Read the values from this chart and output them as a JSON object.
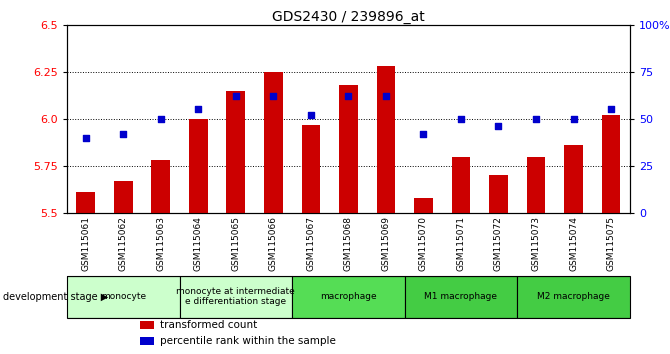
{
  "title": "GDS2430 / 239896_at",
  "samples": [
    "GSM115061",
    "GSM115062",
    "GSM115063",
    "GSM115064",
    "GSM115065",
    "GSM115066",
    "GSM115067",
    "GSM115068",
    "GSM115069",
    "GSM115070",
    "GSM115071",
    "GSM115072",
    "GSM115073",
    "GSM115074",
    "GSM115075"
  ],
  "bar_values": [
    5.61,
    5.67,
    5.78,
    6.0,
    6.15,
    6.25,
    5.97,
    6.18,
    6.28,
    5.58,
    5.8,
    5.7,
    5.8,
    5.86,
    6.02
  ],
  "dot_values": [
    40,
    42,
    50,
    55,
    62,
    62,
    52,
    62,
    62,
    42,
    50,
    46,
    50,
    50,
    55
  ],
  "ylim_left": [
    5.5,
    6.5
  ],
  "ylim_right": [
    0,
    100
  ],
  "yticks_left": [
    5.5,
    5.75,
    6.0,
    6.25,
    6.5
  ],
  "yticks_right": [
    0,
    25,
    50,
    75,
    100
  ],
  "ytick_labels_right": [
    "0",
    "25",
    "50",
    "75",
    "100%"
  ],
  "bar_color": "#cc0000",
  "dot_color": "#0000cc",
  "bar_baseline": 5.5,
  "groups": [
    {
      "label": "monocyte",
      "start": 0,
      "end": 2,
      "color": "#ccffcc"
    },
    {
      "label": "monocyte at intermediate\ne differentiation stage",
      "start": 3,
      "end": 5,
      "color": "#ccffcc"
    },
    {
      "label": "macrophage",
      "start": 6,
      "end": 8,
      "color": "#55dd55"
    },
    {
      "label": "M1 macrophage",
      "start": 9,
      "end": 11,
      "color": "#44cc44"
    },
    {
      "label": "M2 macrophage",
      "start": 12,
      "end": 14,
      "color": "#44cc44"
    }
  ],
  "grid_lines": [
    5.75,
    6.0,
    6.25
  ],
  "xtick_bg_color": "#cccccc",
  "legend_items": [
    {
      "color": "#cc0000",
      "label": "transformed count"
    },
    {
      "color": "#0000cc",
      "label": "percentile rank within the sample"
    }
  ]
}
